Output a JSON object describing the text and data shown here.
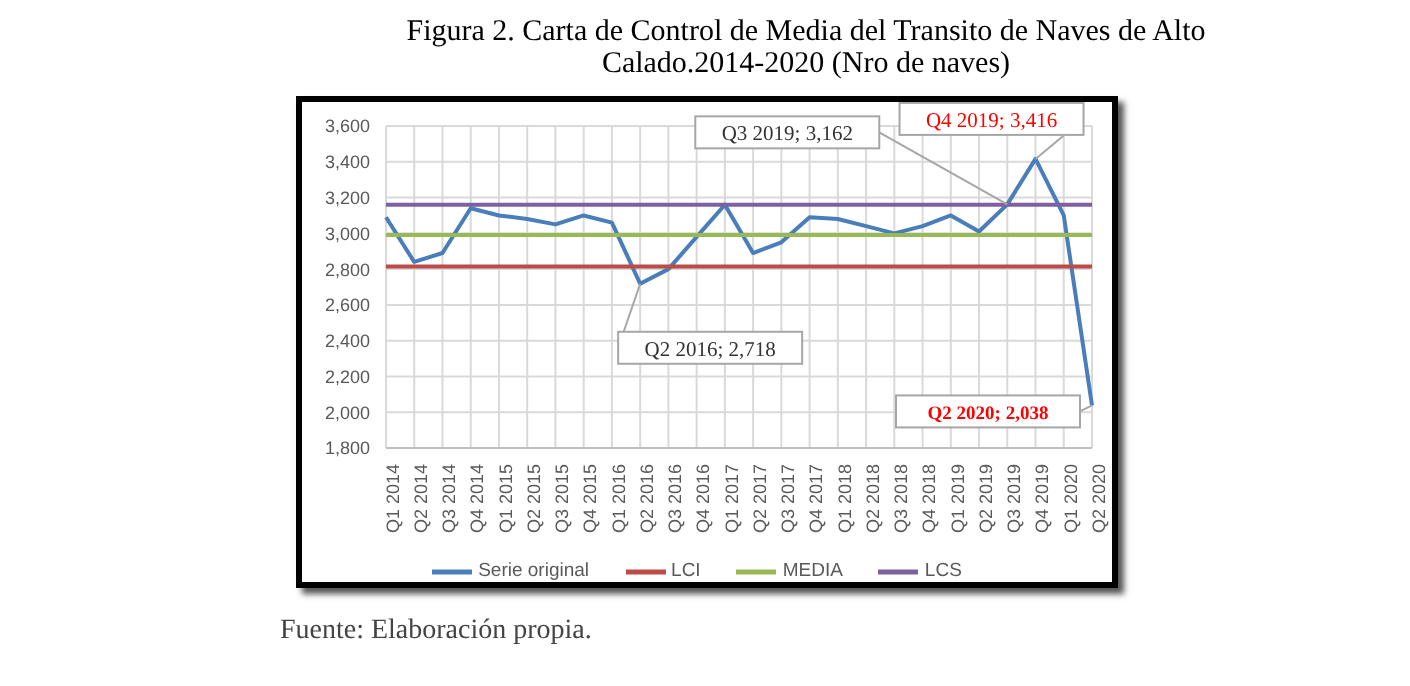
{
  "chart_data": {
    "type": "line",
    "title": "Figura 2. Carta de Control de Media del Transito de Naves de Alto Calado.2014-2020  (Nro de naves)",
    "categories": [
      "Q1 2014",
      "Q2 2014",
      "Q3 2014",
      "Q4 2014",
      "Q1 2015",
      "Q2 2015",
      "Q3 2015",
      "Q4 2015",
      "Q1 2016",
      "Q2 2016",
      "Q3 2016",
      "Q4 2016",
      "Q1 2017",
      "Q2 2017",
      "Q3 2017",
      "Q4 2017",
      "Q1 2018",
      "Q2 2018",
      "Q3 2018",
      "Q4 2018",
      "Q1 2019",
      "Q2 2019",
      "Q3 2019",
      "Q4 2019",
      "Q1 2020",
      "Q2 2020"
    ],
    "series": [
      {
        "name": "Serie original",
        "color": "#4a7ebb",
        "values": [
          3090,
          2840,
          2890,
          3140,
          3100,
          3080,
          3050,
          3100,
          3060,
          2718,
          2800,
          2980,
          3160,
          2890,
          2950,
          3090,
          3080,
          3040,
          3000,
          3040,
          3100,
          3010,
          3162,
          3416,
          3100,
          2038
        ]
      },
      {
        "name": "LCI",
        "color": "#be4b48",
        "values": [
          2815,
          2815,
          2815,
          2815,
          2815,
          2815,
          2815,
          2815,
          2815,
          2815,
          2815,
          2815,
          2815,
          2815,
          2815,
          2815,
          2815,
          2815,
          2815,
          2815,
          2815,
          2815,
          2815,
          2815,
          2815,
          2815
        ]
      },
      {
        "name": "MEDIA",
        "color": "#98b954",
        "values": [
          2990,
          2990,
          2990,
          2990,
          2990,
          2990,
          2990,
          2990,
          2990,
          2990,
          2990,
          2990,
          2990,
          2990,
          2990,
          2990,
          2990,
          2990,
          2990,
          2990,
          2990,
          2990,
          2990,
          2990,
          2990,
          2990
        ]
      },
      {
        "name": "LCS",
        "color": "#7d60a0",
        "values": [
          3160,
          3160,
          3160,
          3160,
          3160,
          3160,
          3160,
          3160,
          3160,
          3160,
          3160,
          3160,
          3160,
          3160,
          3160,
          3160,
          3160,
          3160,
          3160,
          3160,
          3160,
          3160,
          3160,
          3160,
          3160,
          3160
        ]
      }
    ],
    "ylim": [
      1800,
      3600
    ],
    "yticks": [
      {
        "value": 1800,
        "label": "1,800"
      },
      {
        "value": 2000,
        "label": "2,000"
      },
      {
        "value": 2200,
        "label": "2,200"
      },
      {
        "value": 2400,
        "label": "2,400"
      },
      {
        "value": 2600,
        "label": "2,600"
      },
      {
        "value": 2800,
        "label": "2,800"
      },
      {
        "value": 3000,
        "label": "3,000"
      },
      {
        "value": 3200,
        "label": "3,200"
      },
      {
        "value": 3400,
        "label": "3,400"
      },
      {
        "value": 3600,
        "label": "3,600"
      }
    ],
    "grid": true,
    "legend": "bottom",
    "marker": "none",
    "line_style": "solid",
    "annotations": [
      {
        "text": "Q2 2016;  2,718",
        "x": "Q2 2016",
        "y": 2718
      },
      {
        "text": "Q3 2019;  3,162",
        "x": "Q3 2019",
        "y": 3162
      },
      {
        "text": "Q4 2019;  3,416",
        "x": "Q4 2019",
        "y": 3416
      },
      {
        "text": "Q2 2020;  2,038",
        "x": "Q2 2020",
        "y": 2038
      },
      "Fuente: Elaboración propia."
    ]
  }
}
